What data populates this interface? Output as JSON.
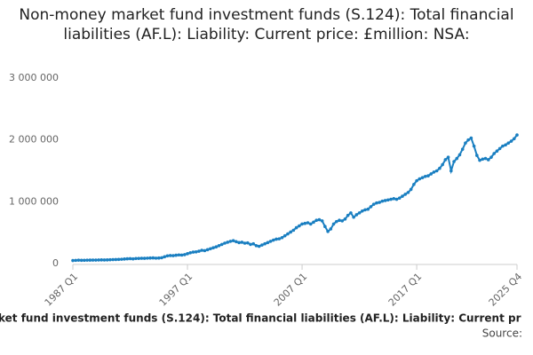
{
  "chart_data": {
    "type": "line",
    "title": "Non-money market fund investment funds (S.124): Total financial liabilities (AF.L): Liability: Current price: £million: NSA:",
    "footer": "ket fund investment funds (S.124): Total financial liabilities (AF.L): Liability: Current pr",
    "source": "Source:",
    "categories": [
      "1987 Q1",
      null,
      null,
      null,
      null,
      null,
      null,
      null,
      null,
      null,
      null,
      null,
      null,
      null,
      null,
      null,
      null,
      null,
      null,
      null,
      null,
      null,
      null,
      null,
      null,
      null,
      null,
      null,
      null,
      null,
      null,
      null,
      null,
      null,
      null,
      null,
      null,
      null,
      null,
      null,
      "1997 Q1",
      null,
      null,
      null,
      null,
      null,
      null,
      null,
      null,
      null,
      null,
      null,
      null,
      null,
      null,
      null,
      null,
      null,
      null,
      null,
      null,
      null,
      null,
      null,
      null,
      null,
      null,
      null,
      null,
      null,
      null,
      null,
      null,
      null,
      null,
      null,
      null,
      null,
      null,
      null,
      "2007 Q1",
      null,
      null,
      null,
      null,
      null,
      null,
      null,
      null,
      null,
      null,
      null,
      null,
      null,
      null,
      null,
      null,
      null,
      null,
      null,
      null,
      null,
      null,
      null,
      null,
      null,
      null,
      null,
      null,
      null,
      null,
      null,
      null,
      null,
      null,
      null,
      null,
      null,
      null,
      null,
      "2017 Q1",
      null,
      null,
      null,
      null,
      null,
      null,
      null,
      null,
      null,
      null,
      null,
      null,
      null,
      null,
      null,
      null,
      null,
      null,
      null,
      null,
      null,
      null,
      null,
      null,
      null,
      null,
      null,
      null,
      null,
      null,
      null,
      null,
      null,
      null,
      "2025 Q4"
    ],
    "values": [
      50000,
      52000,
      55000,
      53000,
      54000,
      55000,
      56000,
      57000,
      57000,
      58000,
      60000,
      59000,
      60000,
      62000,
      64000,
      66000,
      68000,
      70000,
      74000,
      78000,
      80000,
      76000,
      82000,
      84000,
      86000,
      85000,
      88000,
      90000,
      92000,
      88000,
      90000,
      95000,
      110000,
      125000,
      130000,
      128000,
      135000,
      140000,
      138000,
      145000,
      160000,
      175000,
      185000,
      190000,
      200000,
      215000,
      210000,
      225000,
      240000,
      255000,
      270000,
      290000,
      310000,
      330000,
      345000,
      360000,
      370000,
      355000,
      340000,
      345000,
      330000,
      335000,
      310000,
      320000,
      290000,
      280000,
      300000,
      320000,
      340000,
      360000,
      380000,
      395000,
      400000,
      420000,
      450000,
      480000,
      510000,
      540000,
      580000,
      610000,
      640000,
      650000,
      660000,
      640000,
      670000,
      700000,
      710000,
      690000,
      600000,
      520000,
      560000,
      640000,
      680000,
      700000,
      690000,
      720000,
      780000,
      820000,
      750000,
      790000,
      820000,
      850000,
      870000,
      880000,
      920000,
      960000,
      980000,
      990000,
      1010000,
      1020000,
      1030000,
      1040000,
      1050000,
      1040000,
      1060000,
      1090000,
      1120000,
      1150000,
      1200000,
      1280000,
      1340000,
      1370000,
      1390000,
      1410000,
      1420000,
      1450000,
      1480000,
      1500000,
      1540000,
      1600000,
      1680000,
      1720000,
      1500000,
      1650000,
      1700000,
      1760000,
      1850000,
      1950000,
      2000000,
      2030000,
      1900000,
      1750000,
      1670000,
      1690000,
      1700000,
      1680000,
      1720000,
      1780000,
      1820000,
      1860000,
      1900000,
      1920000,
      1950000,
      1980000,
      2020000,
      2080000
    ],
    "color": "#1a7fc1",
    "ylim": [
      0,
      3000000
    ],
    "yticks": [
      0,
      {
        "value": 1000000,
        "label": "1 000 000"
      },
      {
        "value": 2000000,
        "label": "2 000 000"
      },
      {
        "value": 3000000,
        "label": "3 000 000"
      }
    ],
    "grid": false
  }
}
